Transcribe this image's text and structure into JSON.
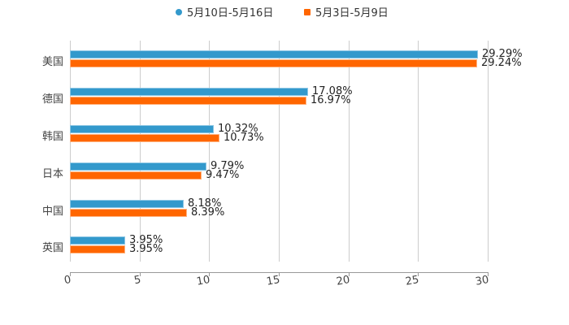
{
  "legend": {
    "items": [
      {
        "label": "5月10日-5月16日",
        "color": "#3399cc",
        "marker": "circle"
      },
      {
        "label": "5月3日-5月9日",
        "color": "#ff6600",
        "marker": "square"
      }
    ]
  },
  "axis": {
    "ticks": [
      "0",
      "5",
      "10",
      "15",
      "20",
      "25",
      "30"
    ]
  },
  "categories": [
    "美国",
    "德国",
    "韩国",
    "日本",
    "中国",
    "英国"
  ],
  "values": {
    "s0": [
      "29.29%",
      "17.08%",
      "10.32%",
      "9.79%",
      "8.18%",
      "3.95%"
    ],
    "s1": [
      "29.24%",
      "16.97%",
      "10.73%",
      "9.47%",
      "8.39%",
      "3.95%"
    ]
  },
  "chart_data": {
    "type": "bar",
    "orientation": "horizontal",
    "title": "",
    "xlabel": "",
    "ylabel": "",
    "xlim": [
      0,
      30
    ],
    "x_ticks": [
      0,
      5,
      10,
      15,
      20,
      25,
      30
    ],
    "grid": true,
    "legend_position": "top",
    "categories": [
      "美国",
      "德国",
      "韩国",
      "日本",
      "中国",
      "英国"
    ],
    "series": [
      {
        "name": "5月10日-5月16日",
        "color": "#3399cc",
        "values": [
          29.29,
          17.08,
          10.32,
          9.79,
          8.18,
          3.95
        ]
      },
      {
        "name": "5月3日-5月9日",
        "color": "#ff6600",
        "values": [
          29.24,
          16.97,
          10.73,
          9.47,
          8.39,
          3.95
        ]
      }
    ],
    "value_labels_format": "percent"
  }
}
